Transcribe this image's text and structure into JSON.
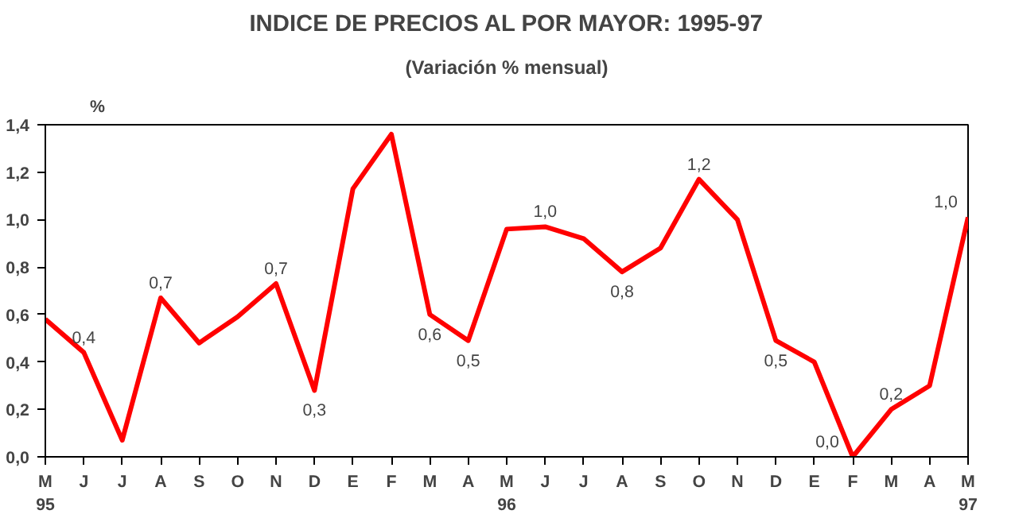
{
  "chart_data": {
    "type": "line",
    "title": "INDICE DE PRECIOS AL POR MAYOR: 1995-97",
    "subtitle": "(Variación % mensual)",
    "ylabel": "%",
    "categories": [
      "M\n95",
      "J",
      "J",
      "A",
      "S",
      "O",
      "N",
      "D",
      "E",
      "F",
      "M",
      "A",
      "M\n96",
      "J",
      "J",
      "A",
      "S",
      "O",
      "N",
      "D",
      "E",
      "F",
      "M",
      "A",
      "M\n97"
    ],
    "series": [
      {
        "color": "#ff0000",
        "values": [
          0.58,
          0.44,
          0.07,
          0.67,
          0.48,
          0.59,
          0.73,
          0.28,
          1.13,
          1.36,
          0.6,
          0.49,
          0.96,
          0.97,
          0.92,
          0.78,
          0.88,
          1.17,
          1.0,
          0.49,
          0.4,
          0.0,
          0.2,
          0.3,
          1.01
        ],
        "value_labels": [
          null,
          "0,4",
          null,
          "0,7",
          null,
          null,
          "0,7",
          "0,3",
          null,
          null,
          "0,6",
          "0,5",
          null,
          "1,0",
          null,
          "0,8",
          null,
          "1,2",
          null,
          "0,5",
          null,
          "0,0",
          "0,2",
          null,
          "1,0"
        ]
      }
    ],
    "ylim": [
      0,
      1.4
    ],
    "yticks": [
      {
        "value": 0,
        "label": "0,0"
      },
      {
        "value": 0.2,
        "label": "0,2"
      },
      {
        "value": 0.4,
        "label": "0,4"
      },
      {
        "value": 0.6,
        "label": "0,6"
      },
      {
        "value": 0.8,
        "label": "0,8"
      },
      {
        "value": 1.0,
        "label": "1,0"
      },
      {
        "value": 1.2,
        "label": "1,2"
      },
      {
        "value": 1.4,
        "label": "1,4"
      }
    ],
    "grid": false,
    "marker": "none",
    "line_style": "solid"
  }
}
